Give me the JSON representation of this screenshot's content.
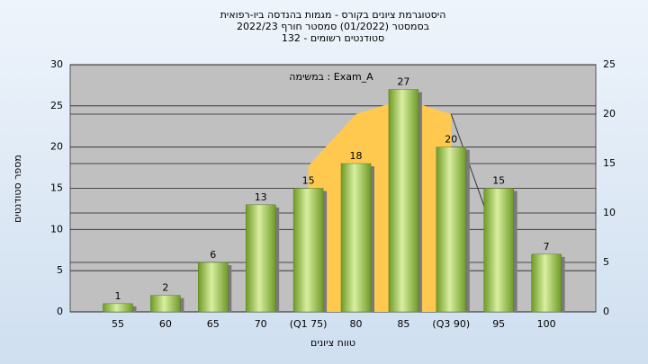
{
  "chart_data": {
    "type": "bar",
    "title_lines": [
      "היסטוגרמת ציונים בקורס - מגמות בהנדסה ביו-רפואית",
      "בסמסטר  (01/2022)  סמסטר חורף 2022/23",
      "סטודנטים רשומים - 132"
    ],
    "annotation": "במשימה : Exam_A",
    "y_label": "מספר סטודנטים",
    "x_label": "טווח ציונים",
    "categories": [
      "55",
      "60",
      "65",
      "70",
      "(Q1 75)",
      "80",
      "85",
      "(Q3 90)",
      "95",
      "100"
    ],
    "values": [
      1,
      2,
      6,
      13,
      15,
      18,
      27,
      20,
      15,
      7
    ],
    "color": "#8fbf3f",
    "area_values": [
      null,
      null,
      null,
      null,
      17.7,
      24,
      25.8,
      24,
      null,
      null
    ],
    "area_color": "#ffc94f",
    "tail_values": [
      null,
      null,
      null,
      null,
      null,
      null,
      null,
      24,
      7.9,
      null
    ],
    "ylim": [
      0,
      30
    ],
    "yticks": [
      0,
      5,
      10,
      15,
      20,
      25,
      30
    ],
    "y2lim": [
      0,
      25
    ],
    "y2ticks": [
      0,
      5,
      10,
      15,
      20,
      25
    ],
    "grid": true
  }
}
